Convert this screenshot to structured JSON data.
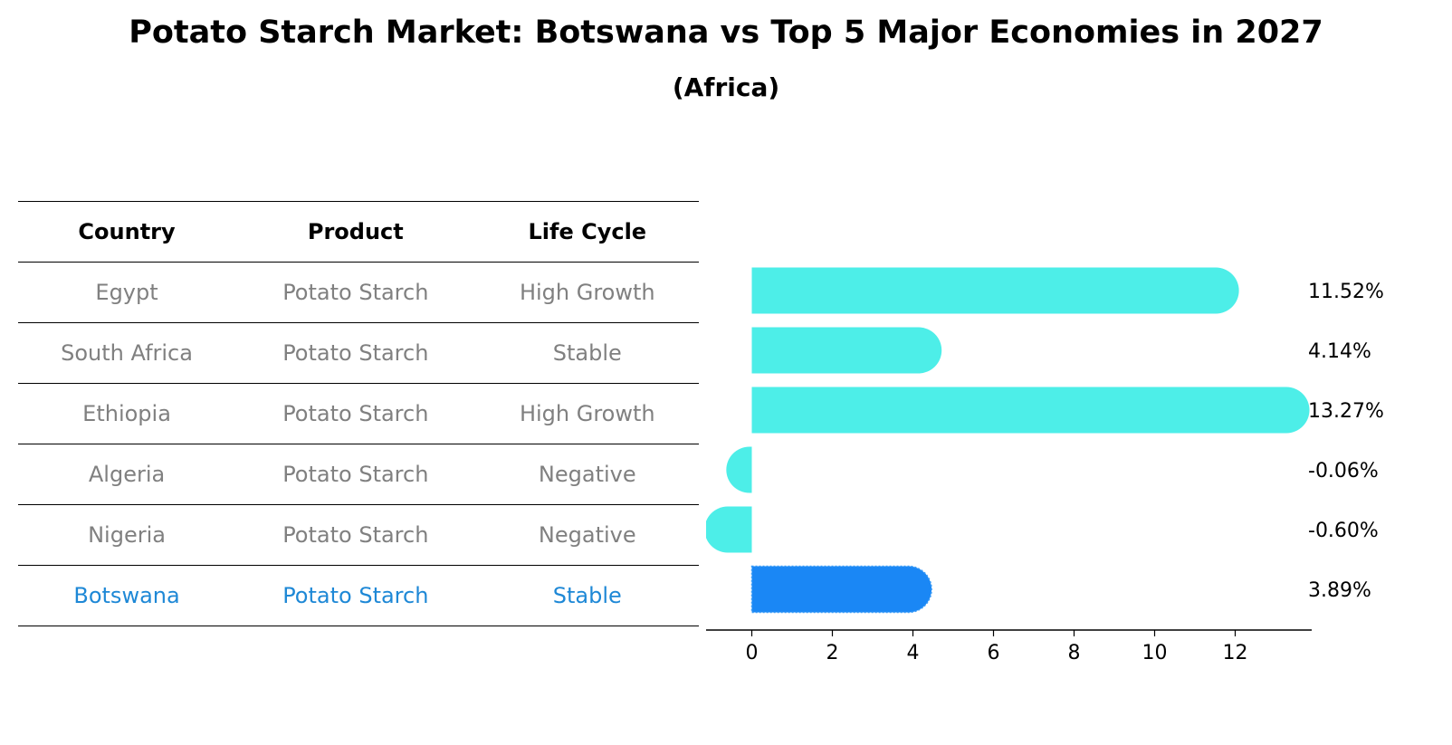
{
  "title": "Potato Starch Market: Botswana vs Top 5 Major Economies in 2027",
  "subtitle": "(Africa)",
  "table": {
    "headers": [
      "Country",
      "Product",
      "Life Cycle"
    ],
    "rows": [
      {
        "country": "Egypt",
        "product": "Potato Starch",
        "life_cycle": "High Growth"
      },
      {
        "country": "South Africa",
        "product": "Potato Starch",
        "life_cycle": "Stable"
      },
      {
        "country": "Ethiopia",
        "product": "Potato Starch",
        "life_cycle": "High Growth"
      },
      {
        "country": "Algeria",
        "product": "Potato Starch",
        "life_cycle": "Negative"
      },
      {
        "country": "Nigeria",
        "product": "Potato Starch",
        "life_cycle": "Negative"
      },
      {
        "country": "Botswana",
        "product": "Potato Starch",
        "life_cycle": "Stable"
      }
    ]
  },
  "chart_data": {
    "type": "bar",
    "orientation": "horizontal",
    "categories": [
      "Egypt",
      "South Africa",
      "Ethiopia",
      "Algeria",
      "Nigeria",
      "Botswana"
    ],
    "values": [
      11.52,
      4.14,
      13.27,
      -0.06,
      -0.6,
      3.89
    ],
    "value_labels": [
      "11.52%",
      "4.14%",
      "13.27%",
      "-0.06%",
      "-0.60%",
      "3.89%"
    ],
    "highlight": "Botswana",
    "xticks": [
      0,
      2,
      4,
      6,
      8,
      10,
      12
    ],
    "xlim": [
      -1.3,
      13.9
    ],
    "colors": {
      "default": "#4deee8",
      "highlight": "#1a87f5"
    },
    "grid": false
  }
}
